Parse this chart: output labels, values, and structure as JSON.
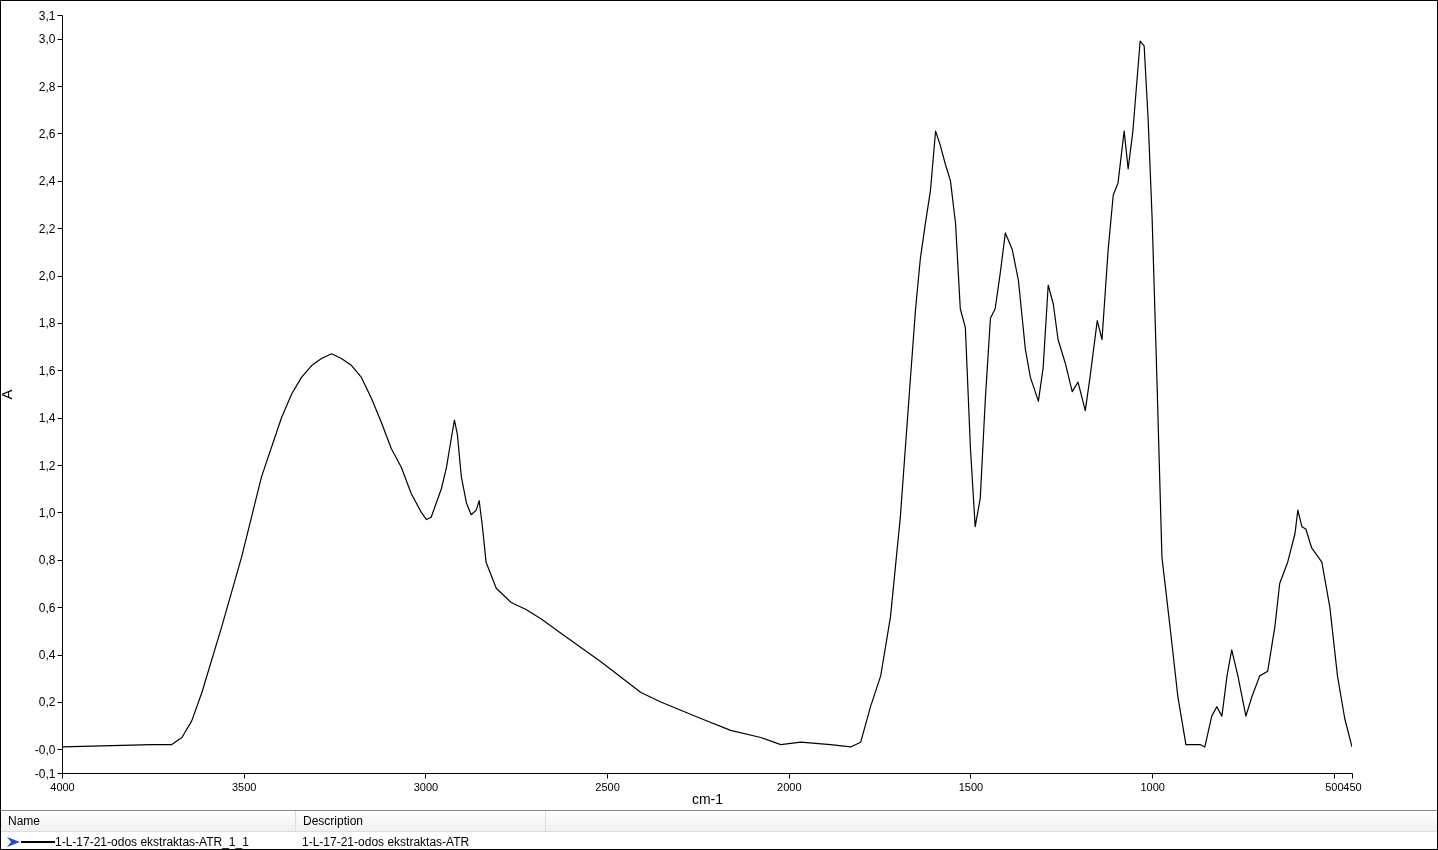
{
  "chart_data": {
    "type": "line",
    "xlabel": "cm-1",
    "ylabel": "A",
    "legend_title": "Name",
    "legend": "bottom",
    "grid": false,
    "annotations": [
      "Description",
      "1-L-17-21-odos ekstraktas-ATR"
    ],
    "xlim": [
      4000,
      450
    ],
    "xticks": [
      4000,
      3500,
      3000,
      2500,
      2000,
      1500,
      1000,
      500,
      450
    ],
    "ylim": [
      -0.1,
      3.1
    ],
    "yticks": [
      {
        "value": -0.1,
        "label": "-0,1"
      },
      {
        "value": 0,
        "label": "-0,0"
      },
      {
        "value": 0.2,
        "label": "0,2"
      },
      {
        "value": 0.4,
        "label": "0,4"
      },
      {
        "value": 0.6,
        "label": "0,6"
      },
      {
        "value": 0.8,
        "label": "0,8"
      },
      {
        "value": 1.0,
        "label": "1,0"
      },
      {
        "value": 1.2,
        "label": "1,2"
      },
      {
        "value": 1.4,
        "label": "1,4"
      },
      {
        "value": 1.6,
        "label": "1,6"
      },
      {
        "value": 1.8,
        "label": "1,8"
      },
      {
        "value": 2.0,
        "label": "2,0"
      },
      {
        "value": 2.2,
        "label": "2,2"
      },
      {
        "value": 2.4,
        "label": "2,4"
      },
      {
        "value": 2.6,
        "label": "2,6"
      },
      {
        "value": 2.8,
        "label": "2,8"
      },
      {
        "value": 3.0,
        "label": "3,0"
      },
      {
        "value": 3.1,
        "label": "3,1"
      }
    ],
    "series": [
      {
        "name": "1-L-17-21-odos ekstraktas-ATR_1_1",
        "color": "#000000",
        "x": [
          4000,
          3753,
          3698,
          3670,
          3643,
          3615,
          3560,
          3506,
          3451,
          3396,
          3368,
          3341,
          3313,
          3286,
          3258,
          3231,
          3203,
          3176,
          3148,
          3121,
          3094,
          3066,
          3039,
          3011,
          2997,
          2984,
          2956,
          2942,
          2929,
          2920,
          2912,
          2901,
          2887,
          2874,
          2860,
          2852,
          2843,
          2833,
          2805,
          2764,
          2723,
          2681,
          2627,
          2517,
          2407,
          2352,
          2242,
          2160,
          2077,
          2022,
          1967,
          1885,
          1830,
          1802,
          1775,
          1747,
          1720,
          1693,
          1665,
          1651,
          1638,
          1624,
          1610,
          1596,
          1583,
          1569,
          1555,
          1541,
          1528,
          1514,
          1500,
          1487,
          1473,
          1459,
          1445,
          1432,
          1418,
          1404,
          1385,
          1368,
          1349,
          1335,
          1313,
          1300,
          1286,
          1272,
          1259,
          1239,
          1220,
          1204,
          1184,
          1171,
          1151,
          1138,
          1121,
          1107,
          1094,
          1077,
          1066,
          1053,
          1033,
          1022,
          1011,
          1000,
          987,
          973,
          951,
          929,
          907,
          888,
          868,
          855,
          836,
          822,
          808,
          794,
          781,
          764,
          742,
          726,
          704,
          682,
          662,
          649,
          627,
          607,
          599,
          588,
          577,
          561,
          533,
          511,
          490,
          470,
          450
        ],
        "values": [
          0.01,
          0.02,
          0.02,
          0.05,
          0.12,
          0.24,
          0.52,
          0.81,
          1.15,
          1.4,
          1.5,
          1.57,
          1.62,
          1.65,
          1.67,
          1.65,
          1.62,
          1.57,
          1.48,
          1.38,
          1.27,
          1.19,
          1.08,
          1.0,
          0.97,
          0.98,
          1.1,
          1.19,
          1.31,
          1.39,
          1.33,
          1.15,
          1.04,
          0.99,
          1.01,
          1.05,
          0.94,
          0.79,
          0.68,
          0.62,
          0.59,
          0.55,
          0.49,
          0.37,
          0.24,
          0.2,
          0.13,
          0.08,
          0.05,
          0.02,
          0.03,
          0.02,
          0.01,
          0.03,
          0.18,
          0.31,
          0.56,
          0.98,
          1.57,
          1.86,
          2.07,
          2.22,
          2.36,
          2.61,
          2.55,
          2.47,
          2.4,
          2.22,
          1.86,
          1.78,
          1.27,
          0.94,
          1.06,
          1.48,
          1.82,
          1.86,
          2.01,
          2.18,
          2.11,
          1.98,
          1.69,
          1.57,
          1.47,
          1.61,
          1.96,
          1.88,
          1.73,
          1.63,
          1.51,
          1.55,
          1.43,
          1.57,
          1.81,
          1.73,
          2.11,
          2.34,
          2.39,
          2.61,
          2.45,
          2.61,
          2.99,
          2.97,
          2.66,
          2.24,
          1.57,
          0.81,
          0.52,
          0.22,
          0.02,
          0.02,
          0.02,
          0.01,
          0.14,
          0.18,
          0.14,
          0.31,
          0.42,
          0.31,
          0.14,
          0.22,
          0.31,
          0.33,
          0.52,
          0.7,
          0.79,
          0.91,
          1.01,
          0.94,
          0.93,
          0.85,
          0.79,
          0.6,
          0.31,
          0.13,
          0.01
        ]
      }
    ]
  }
}
